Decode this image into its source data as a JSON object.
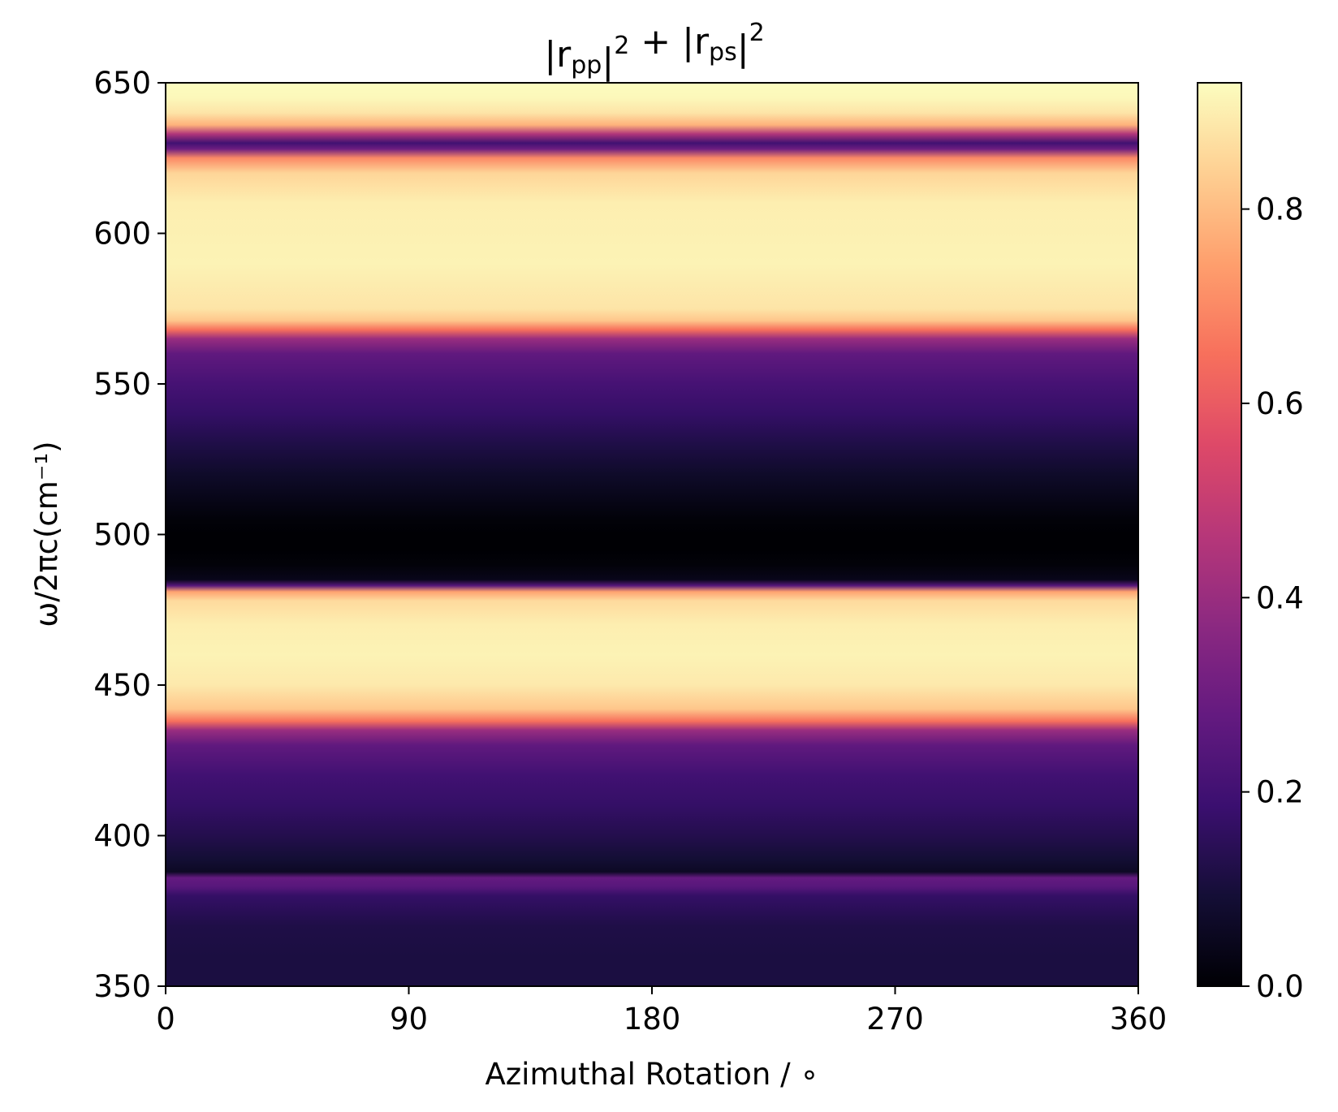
{
  "chart_data": {
    "type": "heatmap",
    "title": {
      "parts": [
        {
          "text": "|r",
          "style": "normal"
        },
        {
          "text": "pp",
          "style": "sub"
        },
        {
          "text": "|",
          "style": "normal"
        },
        {
          "text": "2",
          "style": "sup"
        },
        {
          "text": " + |r",
          "style": "normal"
        },
        {
          "text": "ps",
          "style": "sub"
        },
        {
          "text": "|",
          "style": "normal"
        },
        {
          "text": "2",
          "style": "sup"
        }
      ]
    },
    "xlabel": "Azimuthal Rotation / ∘",
    "ylabel": "ω/2πc(cm⁻¹)",
    "xlim": [
      0,
      360
    ],
    "ylim": [
      350,
      650
    ],
    "xticks": [
      0,
      90,
      180,
      270,
      360
    ],
    "yticks": [
      350,
      400,
      450,
      500,
      550,
      600,
      650
    ],
    "colorbar": {
      "colormap": "magma",
      "range": [
        0,
        0.93
      ],
      "ticks": [
        "0.0",
        "0.2",
        "0.4",
        "0.6",
        "0.8"
      ],
      "tick_values": [
        0.0,
        0.2,
        0.4,
        0.6,
        0.8
      ]
    },
    "variation_along_x": "none (value independent of azimuthal rotation)",
    "profile": {
      "y": [
        350,
        360,
        370,
        380,
        383,
        386,
        388,
        392,
        400,
        410,
        420,
        430,
        435,
        438,
        442,
        450,
        460,
        470,
        478,
        481,
        483,
        485,
        490,
        495,
        500,
        505,
        510,
        520,
        530,
        540,
        550,
        560,
        565,
        568,
        571,
        575,
        590,
        610,
        620,
        625,
        628,
        630,
        633,
        636,
        640,
        645,
        650
      ],
      "value": [
        0.11,
        0.11,
        0.12,
        0.17,
        0.25,
        0.28,
        0.06,
        0.09,
        0.13,
        0.17,
        0.2,
        0.27,
        0.4,
        0.65,
        0.82,
        0.89,
        0.91,
        0.9,
        0.86,
        0.75,
        0.25,
        0.04,
        0.01,
        0.0,
        0.0,
        0.01,
        0.03,
        0.07,
        0.12,
        0.17,
        0.21,
        0.27,
        0.4,
        0.65,
        0.82,
        0.88,
        0.91,
        0.9,
        0.85,
        0.7,
        0.3,
        0.2,
        0.45,
        0.78,
        0.88,
        0.92,
        0.93
      ]
    }
  }
}
